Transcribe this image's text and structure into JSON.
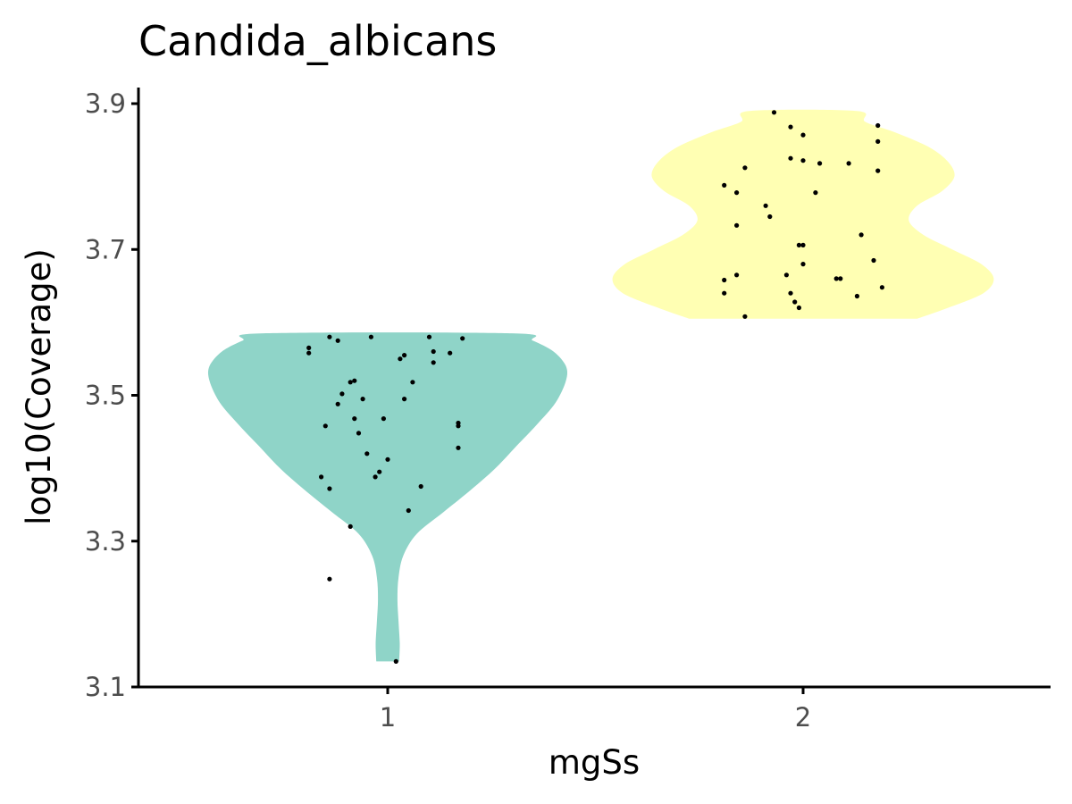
{
  "chart_data": {
    "type": "violin",
    "title": "Candida_albicans",
    "xlabel": "mgSs",
    "ylabel": "log10(Coverage)",
    "categories": [
      "1",
      "2"
    ],
    "ylim": [
      3.1,
      3.92
    ],
    "yticks": [
      3.1,
      3.3,
      3.5,
      3.7,
      3.9
    ],
    "ytick_labels": [
      "3.1",
      "3.3",
      "3.5",
      "3.7",
      "3.9"
    ],
    "grid": false,
    "legend": "none",
    "colors": {
      "1": "#8fd4c8",
      "2": "#ffffb3"
    },
    "series": [
      {
        "category": "1",
        "fill": "#8fd4c8",
        "y_range": [
          3.135,
          3.585
        ],
        "density_profile": [
          [
            3.135,
            0.055
          ],
          [
            3.16,
            0.058
          ],
          [
            3.19,
            0.052
          ],
          [
            3.22,
            0.047
          ],
          [
            3.25,
            0.052
          ],
          [
            3.28,
            0.075
          ],
          [
            3.31,
            0.14
          ],
          [
            3.34,
            0.27
          ],
          [
            3.37,
            0.4
          ],
          [
            3.4,
            0.52
          ],
          [
            3.43,
            0.62
          ],
          [
            3.46,
            0.72
          ],
          [
            3.49,
            0.81
          ],
          [
            3.52,
            0.86
          ],
          [
            3.54,
            0.86
          ],
          [
            3.56,
            0.8
          ],
          [
            3.575,
            0.7
          ],
          [
            3.585,
            0.6
          ]
        ],
        "points": [
          [
            0.86,
            3.58
          ],
          [
            0.81,
            3.565
          ],
          [
            0.81,
            3.558
          ],
          [
            0.88,
            3.575
          ],
          [
            0.96,
            3.58
          ],
          [
            1.1,
            3.58
          ],
          [
            1.18,
            3.578
          ],
          [
            1.04,
            3.555
          ],
          [
            1.03,
            3.55
          ],
          [
            1.11,
            3.56
          ],
          [
            1.15,
            3.558
          ],
          [
            1.11,
            3.545
          ],
          [
            0.91,
            3.518
          ],
          [
            0.92,
            3.52
          ],
          [
            1.06,
            3.518
          ],
          [
            0.89,
            3.502
          ],
          [
            0.94,
            3.495
          ],
          [
            1.04,
            3.495
          ],
          [
            0.88,
            3.488
          ],
          [
            0.92,
            3.468
          ],
          [
            0.99,
            3.468
          ],
          [
            0.85,
            3.458
          ],
          [
            1.17,
            3.462
          ],
          [
            1.17,
            3.458
          ],
          [
            0.93,
            3.448
          ],
          [
            1.17,
            3.428
          ],
          [
            0.95,
            3.42
          ],
          [
            1.0,
            3.412
          ],
          [
            0.98,
            3.395
          ],
          [
            0.97,
            3.388
          ],
          [
            0.84,
            3.388
          ],
          [
            1.08,
            3.375
          ],
          [
            0.86,
            3.372
          ],
          [
            1.05,
            3.342
          ],
          [
            0.91,
            3.32
          ],
          [
            0.86,
            3.248
          ],
          [
            1.02,
            3.135
          ]
        ]
      },
      {
        "category": "2",
        "fill": "#ffffb3",
        "y_range": [
          3.605,
          3.89
        ],
        "density_profile": [
          [
            3.605,
            0.55
          ],
          [
            3.62,
            0.7
          ],
          [
            3.64,
            0.87
          ],
          [
            3.66,
            0.92
          ],
          [
            3.68,
            0.86
          ],
          [
            3.7,
            0.72
          ],
          [
            3.72,
            0.58
          ],
          [
            3.74,
            0.51
          ],
          [
            3.76,
            0.55
          ],
          [
            3.78,
            0.67
          ],
          [
            3.8,
            0.73
          ],
          [
            3.82,
            0.7
          ],
          [
            3.84,
            0.61
          ],
          [
            3.86,
            0.45
          ],
          [
            3.875,
            0.3
          ],
          [
            3.89,
            0.26
          ]
        ],
        "points": [
          [
            1.93,
            3.888
          ],
          [
            1.97,
            3.868
          ],
          [
            2.18,
            3.87
          ],
          [
            2.0,
            3.857
          ],
          [
            2.18,
            3.848
          ],
          [
            1.97,
            3.825
          ],
          [
            2.0,
            3.822
          ],
          [
            2.04,
            3.818
          ],
          [
            2.11,
            3.818
          ],
          [
            1.86,
            3.812
          ],
          [
            2.18,
            3.808
          ],
          [
            1.81,
            3.788
          ],
          [
            1.84,
            3.778
          ],
          [
            2.03,
            3.778
          ],
          [
            1.91,
            3.76
          ],
          [
            1.92,
            3.745
          ],
          [
            1.84,
            3.733
          ],
          [
            2.14,
            3.72
          ],
          [
            1.99,
            3.706
          ],
          [
            2.0,
            3.706
          ],
          [
            2.17,
            3.685
          ],
          [
            2.0,
            3.68
          ],
          [
            1.84,
            3.665
          ],
          [
            1.96,
            3.665
          ],
          [
            1.81,
            3.658
          ],
          [
            2.08,
            3.66
          ],
          [
            2.09,
            3.66
          ],
          [
            2.19,
            3.648
          ],
          [
            1.81,
            3.64
          ],
          [
            1.97,
            3.64
          ],
          [
            2.13,
            3.636
          ],
          [
            1.98,
            3.628
          ],
          [
            1.99,
            3.62
          ],
          [
            1.86,
            3.608
          ]
        ]
      }
    ]
  }
}
